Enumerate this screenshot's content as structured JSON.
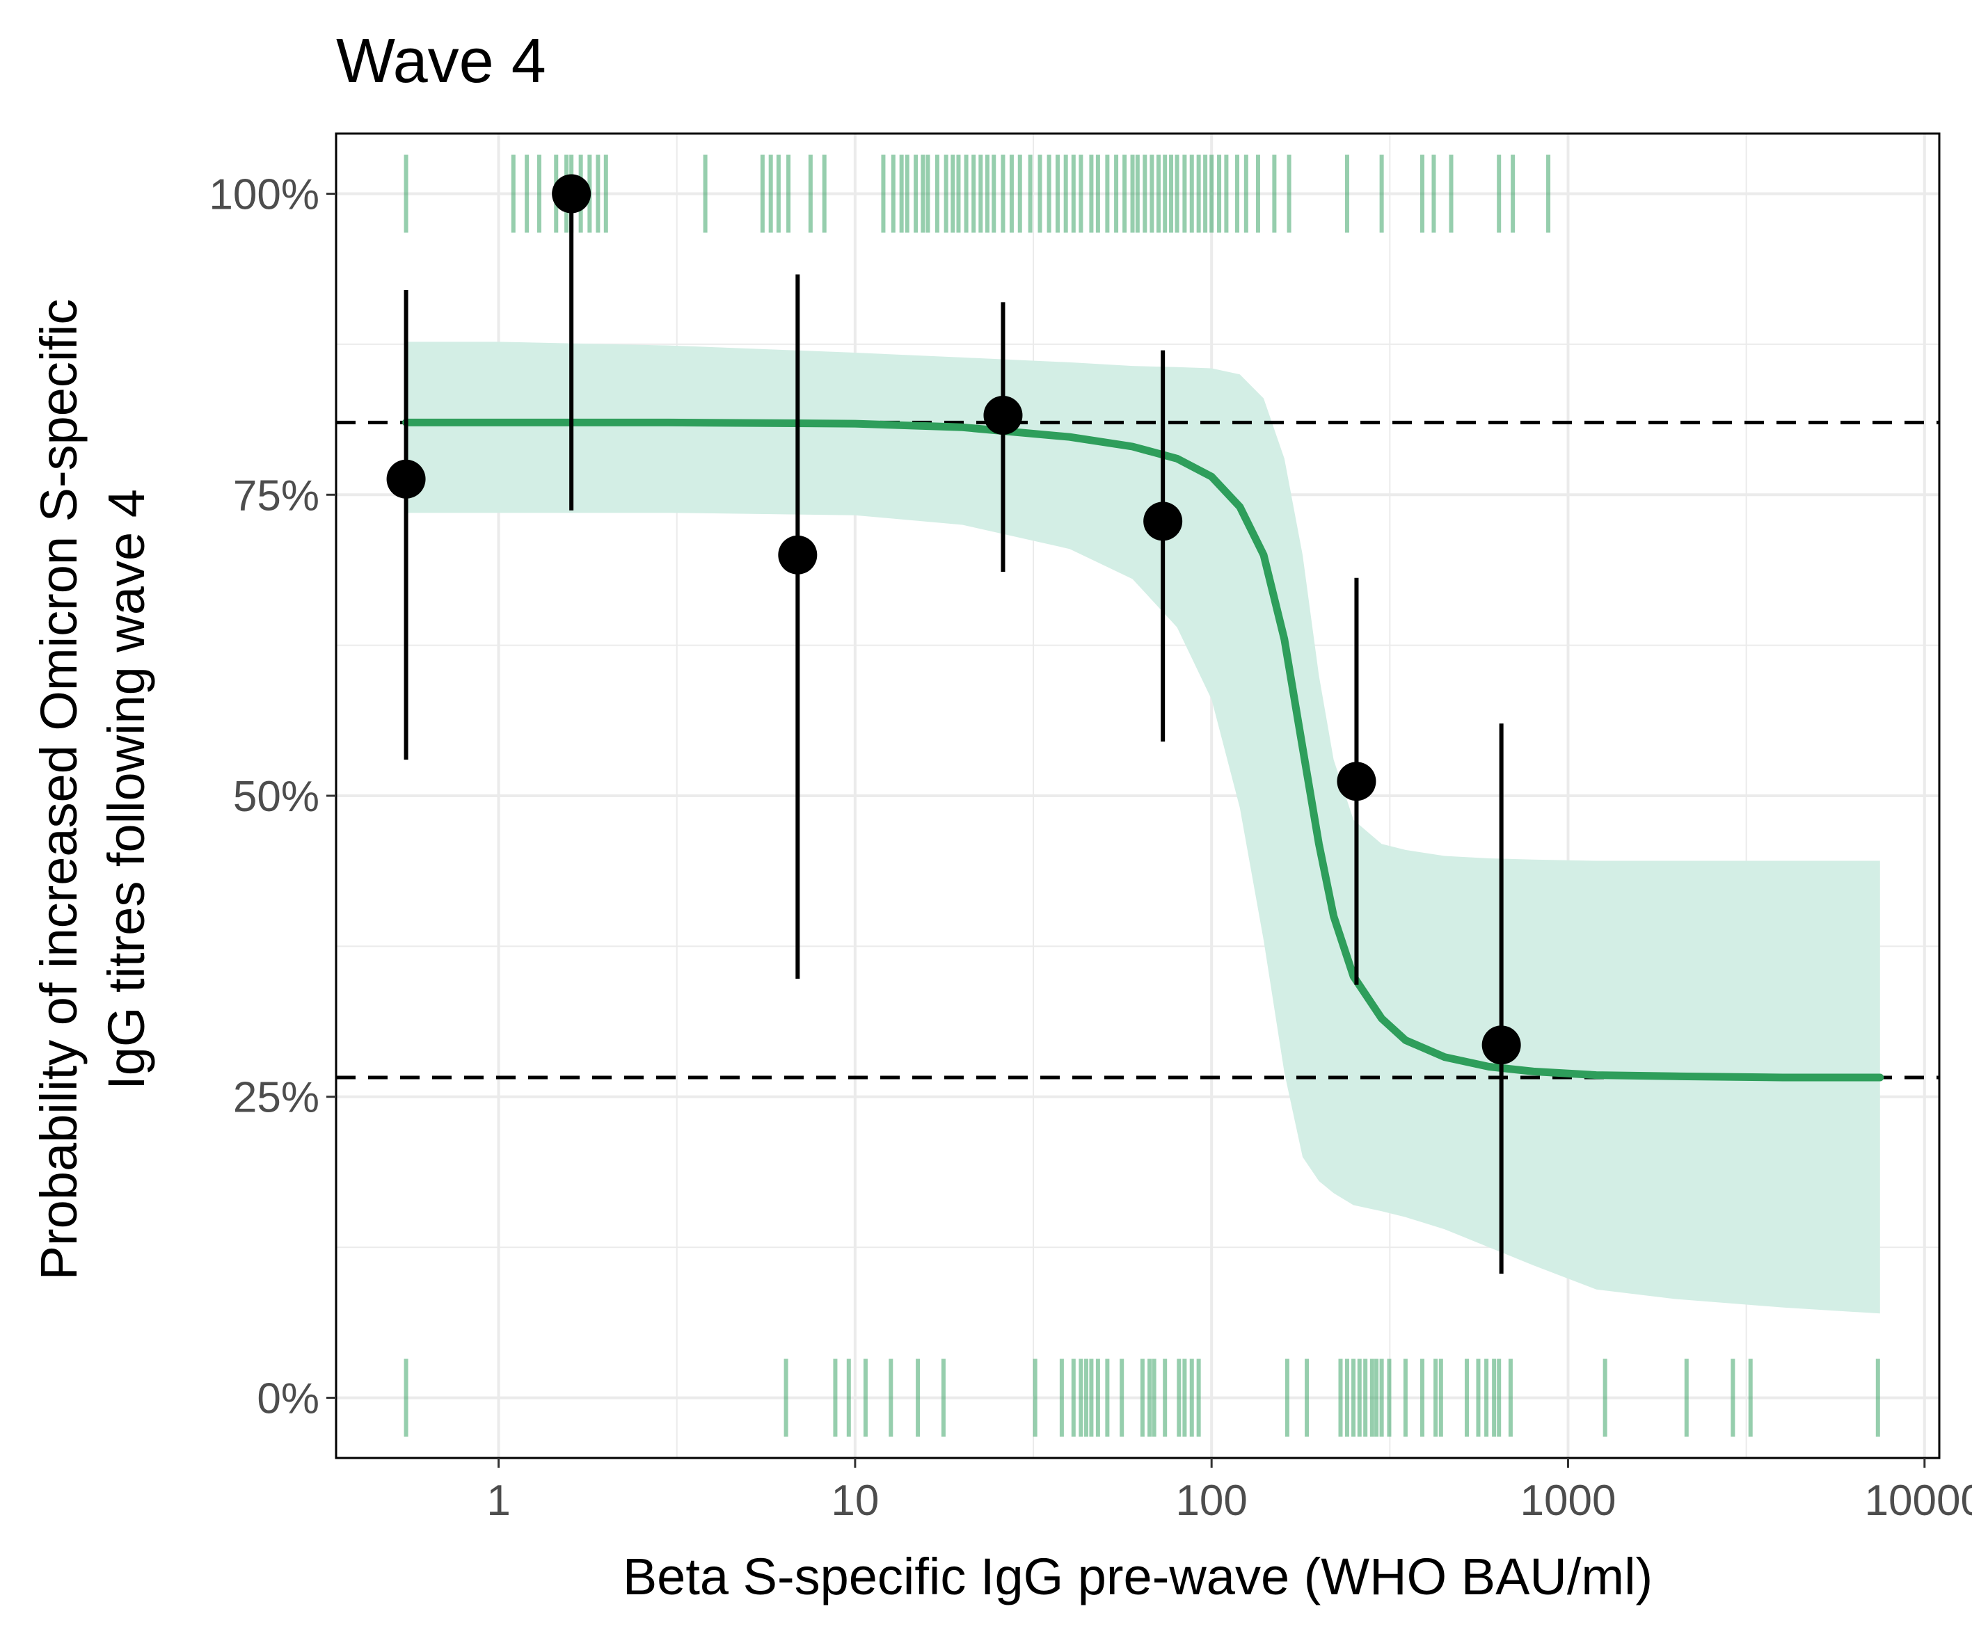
{
  "chart_data": {
    "type": "scatter",
    "title": "Wave 4",
    "xlabel": "Beta S-specific IgG pre-wave (WHO BAU/ml)",
    "ylabel": [
      "Probability of increased Omicron S-specific",
      "IgG titres following wave 4"
    ],
    "x_scale": "log10",
    "xlim": [
      0.35,
      11000
    ],
    "ylim": [
      -0.05,
      1.05
    ],
    "x_ticks": [
      1,
      10,
      100,
      1000,
      10000
    ],
    "x_tick_labels": [
      "1",
      "10",
      "100",
      "1000",
      "10000"
    ],
    "y_ticks": [
      0,
      0.25,
      0.5,
      0.75,
      1.0
    ],
    "y_tick_labels": [
      "0%",
      "25%",
      "50%",
      "75%",
      "100%"
    ],
    "grid": true,
    "colors": {
      "fit_line": "#2e9e5b",
      "ribbon": "#d3eee5",
      "rug": "#2e9e5b",
      "points": "#000000",
      "reference_lines": "#000000"
    },
    "reference_lines": [
      0.81,
      0.266
    ],
    "binned_points": [
      {
        "x": 0.55,
        "y": 0.763,
        "lower": 0.53,
        "upper": 0.92
      },
      {
        "x": 1.6,
        "y": 1.0,
        "lower": 0.737,
        "upper": 1.0
      },
      {
        "x": 6.9,
        "y": 0.7,
        "lower": 0.348,
        "upper": 0.933
      },
      {
        "x": 26,
        "y": 0.816,
        "lower": 0.686,
        "upper": 0.91
      },
      {
        "x": 73,
        "y": 0.728,
        "lower": 0.545,
        "upper": 0.87
      },
      {
        "x": 255,
        "y": 0.512,
        "lower": 0.343,
        "upper": 0.681
      },
      {
        "x": 650,
        "y": 0.293,
        "lower": 0.103,
        "upper": 0.56
      }
    ],
    "fitted_curve": {
      "x": [
        0.55,
        1,
        3,
        10,
        20,
        40,
        60,
        80,
        100,
        120,
        140,
        160,
        180,
        200,
        220,
        250,
        300,
        350,
        450,
        600,
        800,
        1200,
        2000,
        4000,
        7500
      ],
      "y": [
        0.81,
        0.81,
        0.81,
        0.809,
        0.806,
        0.798,
        0.79,
        0.78,
        0.765,
        0.74,
        0.7,
        0.63,
        0.54,
        0.46,
        0.4,
        0.35,
        0.315,
        0.297,
        0.283,
        0.275,
        0.271,
        0.268,
        0.267,
        0.266,
        0.266
      ],
      "lower": [
        0.735,
        0.735,
        0.735,
        0.733,
        0.725,
        0.705,
        0.68,
        0.64,
        0.58,
        0.49,
        0.38,
        0.27,
        0.2,
        0.18,
        0.17,
        0.16,
        0.155,
        0.15,
        0.14,
        0.125,
        0.11,
        0.09,
        0.082,
        0.075,
        0.07
      ],
      "upper": [
        0.877,
        0.877,
        0.874,
        0.868,
        0.864,
        0.86,
        0.857,
        0.856,
        0.855,
        0.85,
        0.83,
        0.78,
        0.7,
        0.6,
        0.53,
        0.48,
        0.46,
        0.455,
        0.45,
        0.448,
        0.447,
        0.446,
        0.446,
        0.446,
        0.446
      ]
    },
    "rug_top_x": [
      0.55,
      1.1,
      1.2,
      1.3,
      1.45,
      1.55,
      1.6,
      1.7,
      1.8,
      1.9,
      2.0,
      3.8,
      5.5,
      5.8,
      6.1,
      6.5,
      7.5,
      8.2,
      12,
      12.8,
      13.5,
      14,
      14.8,
      15.5,
      16,
      17,
      18,
      18.8,
      19.5,
      20.5,
      21.5,
      22.5,
      23.5,
      24.5,
      26,
      27.5,
      29,
      31,
      33,
      35,
      37,
      39,
      41,
      43,
      46,
      48,
      51,
      54,
      57,
      60,
      62,
      65,
      68,
      71,
      74,
      77,
      80,
      84,
      88,
      92,
      96,
      100,
      105,
      110,
      118,
      125,
      135,
      150,
      165,
      240,
      300,
      390,
      420,
      470,
      640,
      700,
      880
    ],
    "rug_bottom_x": [
      0.55,
      6.4,
      8.8,
      9.6,
      10.7,
      12.6,
      15,
      17.7,
      32,
      38,
      41,
      43,
      44.5,
      46,
      48,
      51,
      56,
      64,
      67,
      69,
      74,
      81,
      84,
      88,
      92,
      163,
      185,
      230,
      240,
      250,
      260,
      270,
      282,
      290,
      300,
      315,
      350,
      390,
      425,
      440,
      520,
      560,
      590,
      620,
      640,
      690,
      1270,
      2150,
      2900,
      3250,
      7400
    ]
  }
}
